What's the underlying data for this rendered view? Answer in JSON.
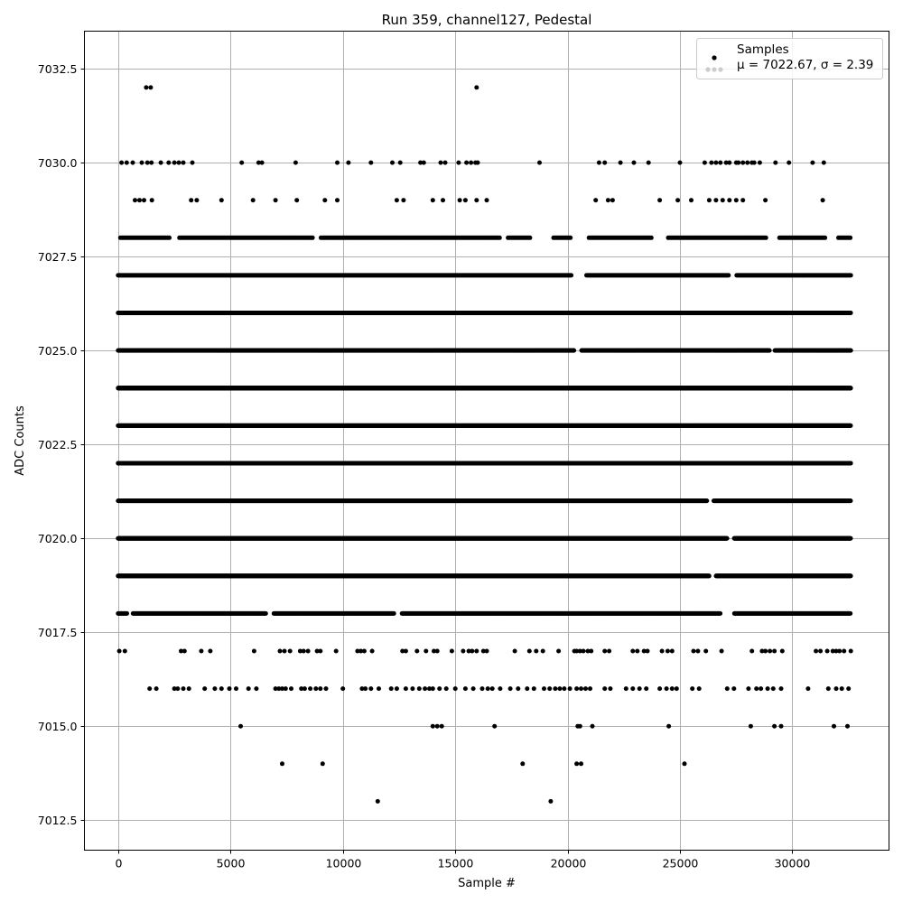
{
  "chart_data": {
    "type": "scatter",
    "title": "Run 359, channel127, Pedestal",
    "xlabel": "Sample #",
    "ylabel": "ADC Counts",
    "xlim": [
      -1500,
      34300
    ],
    "ylim": [
      7011.7,
      7033.5
    ],
    "x_ticks": [
      0,
      5000,
      10000,
      15000,
      20000,
      25000,
      30000
    ],
    "x_tick_labels": [
      "0",
      "5000",
      "10000",
      "15000",
      "20000",
      "25000",
      "30000"
    ],
    "y_ticks": [
      7012.5,
      7015.0,
      7017.5,
      7020.0,
      7022.5,
      7025.0,
      7027.5,
      7030.0,
      7032.5
    ],
    "y_tick_labels": [
      "7012.5",
      "7015.0",
      "7017.5",
      "7020.0",
      "7022.5",
      "7025.0",
      "7027.5",
      "7030.0",
      "7032.5"
    ],
    "grid": true,
    "legend": {
      "position": "top-right",
      "series_label": "Samples",
      "stats_label": "μ = 7022.67, σ = 2.39"
    },
    "marker_color": "#000000",
    "series": [
      {
        "name": "Samples",
        "levels": [
          {
            "y": 7032,
            "x": [
              1250,
              1450,
              15950
            ]
          },
          {
            "y": 7030,
            "x": [
              150,
              380,
              650,
              1050,
              1300,
              1480,
              1900,
              2250,
              2500,
              2700,
              2900,
              3300,
              5500,
              6250,
              6400,
              7900,
              9750,
              10250,
              11250,
              12200,
              12550,
              13450,
              13600,
              14350,
              14550,
              15150,
              15500,
              15700,
              15900,
              16000,
              18750,
              21400,
              21650,
              22350,
              22950,
              23600,
              25000,
              26100,
              26400,
              26600,
              26800,
              27050,
              27200,
              27500,
              27600,
              27800,
              28000,
              28200,
              28300,
              28550,
              29250,
              29850,
              30900,
              31400
            ]
          },
          {
            "y": 7029,
            "x": [
              750,
              950,
              1150,
              1500,
              3250,
              3500,
              4600,
              6000,
              7000,
              7950,
              9200,
              9750,
              12400,
              12700,
              14000,
              14450,
              15200,
              15450,
              15950,
              16400,
              21250,
              21800,
              22000,
              24100,
              24900,
              25500,
              26300,
              26600,
              26900,
              27200,
              27500,
              27800,
              28800,
              31350
            ]
          },
          {
            "dense": true,
            "y": 7028,
            "x_start": 100,
            "x_end": 32600,
            "step": 75,
            "gaps": [
              [
                2300,
                2700
              ],
              [
                8700,
                9000
              ],
              [
                17000,
                17300
              ],
              [
                18400,
                19300
              ],
              [
                20200,
                20900
              ],
              [
                23800,
                24400
              ],
              [
                28900,
                29400
              ],
              [
                31500,
                32000
              ]
            ]
          },
          {
            "dense": true,
            "y": 7027,
            "x_start": 0,
            "x_end": 32600,
            "step": 40,
            "gaps": [
              [
                20200,
                20800
              ],
              [
                27200,
                27500
              ]
            ]
          },
          {
            "dense": true,
            "y": 7026,
            "x_start": 0,
            "x_end": 32600,
            "step": 15,
            "gaps": []
          },
          {
            "dense": true,
            "y": 7025,
            "x_start": 0,
            "x_end": 32600,
            "step": 20,
            "gaps": [
              [
                20300,
                20600
              ],
              [
                29000,
                29200
              ]
            ]
          },
          {
            "dense": true,
            "y": 7024,
            "x_start": 0,
            "x_end": 32600,
            "step": 6,
            "gaps": []
          },
          {
            "dense": true,
            "y": 7023,
            "x_start": 0,
            "x_end": 32600,
            "step": 12,
            "gaps": []
          },
          {
            "dense": true,
            "y": 7022,
            "x_start": 0,
            "x_end": 32600,
            "step": 6,
            "gaps": []
          },
          {
            "dense": true,
            "y": 7021,
            "x_start": 0,
            "x_end": 32600,
            "step": 14,
            "gaps": [
              [
                26200,
                26500
              ]
            ]
          },
          {
            "dense": true,
            "y": 7020,
            "x_start": 0,
            "x_end": 32600,
            "step": 14,
            "gaps": [
              [
                27100,
                27400
              ]
            ]
          },
          {
            "dense": true,
            "y": 7019,
            "x_start": 0,
            "x_end": 32600,
            "step": 18,
            "gaps": [
              [
                26300,
                26600
              ]
            ]
          },
          {
            "dense": true,
            "y": 7018,
            "x_start": 0,
            "x_end": 32600,
            "step": 30,
            "gaps": [
              [
                400,
                650
              ],
              [
                6600,
                6900
              ],
              [
                12300,
                12600
              ],
              [
                26800,
                27400
              ]
            ]
          },
          {
            "y": 7017,
            "x": [
              50,
              300,
              2800,
              2950,
              3700,
              4100,
              6050,
              7200,
              7400,
              7650,
              8100,
              8250,
              8450,
              8850,
              9000,
              9700,
              10650,
              10800,
              10950,
              11300,
              12650,
              12800,
              13300,
              13700,
              14050,
              14200,
              14850,
              15350,
              15600,
              15750,
              15950,
              16250,
              16400,
              17650,
              18300,
              18600,
              18900,
              19600,
              20300,
              20400,
              20550,
              20700,
              20900,
              21050,
              21650,
              21850,
              22900,
              23100,
              23400,
              23550,
              24200,
              24450,
              24650,
              25600,
              25800,
              26150,
              26850,
              28200,
              28650,
              28800,
              29000,
              29200,
              29550,
              31050,
              31250,
              31550,
              31800,
              31950,
              32100,
              32300,
              32600
            ]
          },
          {
            "y": 7016,
            "x": [
              1400,
              1700,
              2500,
              2650,
              2900,
              3150,
              3850,
              4300,
              4600,
              4950,
              5250,
              5800,
              6150,
              7000,
              7150,
              7300,
              7450,
              7700,
              8150,
              8300,
              8550,
              8800,
              9000,
              9250,
              10000,
              10850,
              11000,
              11250,
              11600,
              12150,
              12400,
              12800,
              13100,
              13400,
              13650,
              13850,
              14000,
              14300,
              14600,
              15000,
              15450,
              15800,
              16200,
              16450,
              16650,
              17000,
              17450,
              17800,
              18200,
              18500,
              18950,
              19200,
              19450,
              19650,
              19850,
              20100,
              20400,
              20600,
              20800,
              21000,
              21650,
              21900,
              22600,
              22900,
              23200,
              23500,
              24100,
              24400,
              24650,
              24850,
              25550,
              25850,
              27100,
              27400,
              28050,
              28400,
              28600,
              28900,
              29150,
              29500,
              30700,
              31600,
              31950,
              32200,
              32500
            ]
          },
          {
            "y": 7015,
            "x": [
              5450,
              14000,
              14200,
              14400,
              16750,
              20450,
              20550,
              21100,
              24500,
              28150,
              29200,
              29500,
              31850,
              32450
            ]
          },
          {
            "y": 7014,
            "x": [
              7300,
              9100,
              18000,
              20400,
              20600,
              25200
            ]
          },
          {
            "y": 7013,
            "x": [
              11550,
              19250
            ]
          }
        ]
      }
    ]
  }
}
